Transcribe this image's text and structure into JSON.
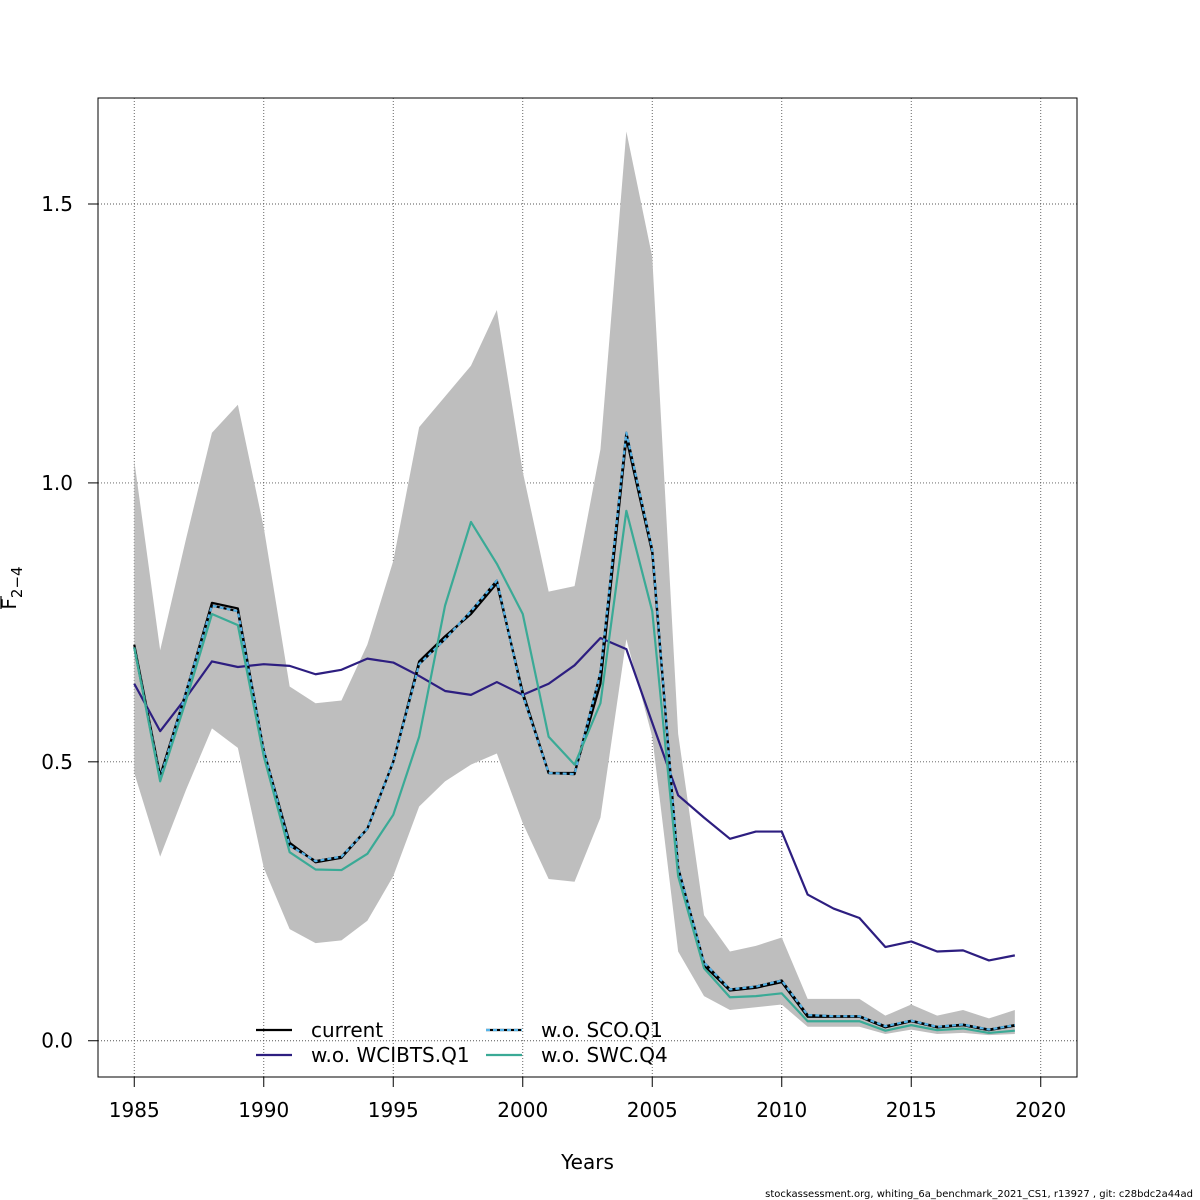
{
  "chart_data": {
    "type": "line",
    "xlabel": "Years",
    "ylabel": "F̅ 2−4",
    "ylabel_main": "F",
    "ylabel_sub": "2−4",
    "xlim": [
      1983.6,
      2021.4
    ],
    "ylim": [
      -0.065,
      1.69
    ],
    "xticks": [
      1985,
      1990,
      1995,
      2000,
      2005,
      2010,
      2015,
      2020
    ],
    "yticks": [
      0.0,
      0.5,
      1.0,
      1.5
    ],
    "ytick_labels": [
      "0.0",
      "0.5",
      "1.0",
      "1.5"
    ],
    "grid": true,
    "legend_position": "bottom",
    "x": [
      1985,
      1986,
      1987,
      1988,
      1989,
      1990,
      1991,
      1992,
      1993,
      1994,
      1995,
      1996,
      1997,
      1998,
      1999,
      2000,
      2001,
      2002,
      2003,
      2004,
      2005,
      2006,
      2007,
      2008,
      2009,
      2010,
      2011,
      2012,
      2013,
      2014,
      2015,
      2016,
      2017,
      2018,
      2019
    ],
    "band": {
      "color": "#bebebe",
      "lower": [
        0.48,
        0.33,
        0.45,
        0.56,
        0.525,
        0.31,
        0.2,
        0.175,
        0.18,
        0.215,
        0.295,
        0.42,
        0.465,
        0.495,
        0.515,
        0.39,
        0.29,
        0.285,
        0.4,
        0.72,
        0.545,
        0.16,
        0.08,
        0.055,
        0.06,
        0.065,
        0.025,
        0.025,
        0.025,
        0.012,
        0.02,
        0.012,
        0.014,
        0.01,
        0.012
      ],
      "upper": [
        1.04,
        0.7,
        0.9,
        1.09,
        1.14,
        0.92,
        0.635,
        0.605,
        0.61,
        0.71,
        0.86,
        1.1,
        1.155,
        1.21,
        1.31,
        1.02,
        0.805,
        0.815,
        1.06,
        1.63,
        1.405,
        0.55,
        0.225,
        0.16,
        0.17,
        0.185,
        0.075,
        0.075,
        0.075,
        0.045,
        0.065,
        0.045,
        0.055,
        0.04,
        0.055
      ]
    },
    "series": [
      {
        "name": "current",
        "color": "#000000",
        "dash": "",
        "values": [
          0.71,
          0.475,
          0.625,
          0.785,
          0.775,
          0.52,
          0.355,
          0.32,
          0.328,
          0.38,
          0.5,
          0.68,
          0.725,
          0.765,
          0.82,
          0.625,
          0.48,
          0.48,
          0.64,
          1.08,
          0.875,
          0.31,
          0.135,
          0.09,
          0.095,
          0.105,
          0.043,
          0.043,
          0.043,
          0.024,
          0.035,
          0.024,
          0.028,
          0.019,
          0.027
        ]
      },
      {
        "name": "w.o. WCIBTS.Q1",
        "color": "#2d1e80",
        "dash": "",
        "values": [
          0.64,
          0.555,
          0.615,
          0.68,
          0.67,
          0.675,
          0.672,
          0.657,
          0.665,
          0.685,
          0.678,
          0.654,
          0.627,
          0.62,
          0.643,
          0.62,
          0.64,
          0.673,
          0.722,
          0.702,
          0.57,
          0.44,
          0.4,
          0.362,
          0.375,
          0.375,
          0.262,
          0.237,
          0.22,
          0.168,
          0.178,
          0.16,
          0.162,
          0.144,
          0.153
        ]
      },
      {
        "name": "w.o. SCO.Q1",
        "color": "#56b4e9",
        "dash": "4,3",
        "values": [
          0.705,
          0.47,
          0.625,
          0.78,
          0.77,
          0.52,
          0.35,
          0.322,
          0.33,
          0.38,
          0.5,
          0.675,
          0.72,
          0.77,
          0.825,
          0.62,
          0.48,
          0.478,
          0.66,
          1.09,
          0.88,
          0.31,
          0.14,
          0.092,
          0.097,
          0.108,
          0.046,
          0.044,
          0.044,
          0.026,
          0.036,
          0.025,
          0.029,
          0.02,
          0.028
        ]
      },
      {
        "name": "w.o. SWC.Q4",
        "color": "#3aaa96",
        "dash": "",
        "values": [
          0.705,
          0.465,
          0.61,
          0.765,
          0.745,
          0.51,
          0.338,
          0.307,
          0.306,
          0.335,
          0.405,
          0.545,
          0.78,
          0.93,
          0.855,
          0.765,
          0.545,
          0.495,
          0.605,
          0.95,
          0.77,
          0.295,
          0.13,
          0.078,
          0.08,
          0.085,
          0.035,
          0.035,
          0.035,
          0.018,
          0.028,
          0.019,
          0.022,
          0.014,
          0.018
        ]
      }
    ],
    "legend": [
      {
        "label": "current",
        "series": 0
      },
      {
        "label": "w.o. WCIBTS.Q1",
        "series": 1
      },
      {
        "label": "w.o. SCO.Q1",
        "series": 2
      },
      {
        "label": "w.o. SWC.Q4",
        "series": 3
      }
    ]
  },
  "footer": "stockassessment.org, whiting_6a_benchmark_2021_CS1, r13927 , git: c28bdc2a44ad"
}
